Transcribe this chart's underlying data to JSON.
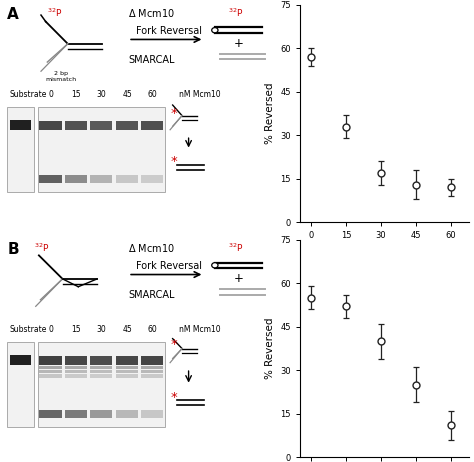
{
  "panel_A": {
    "x": [
      0,
      15,
      30,
      45,
      60
    ],
    "y": [
      57,
      33,
      17,
      13,
      12
    ],
    "yerr": [
      3,
      4,
      4,
      5,
      3
    ],
    "ylabel": "% Reversed",
    "xlabel": "nM Mcm10",
    "ylim": [
      0,
      75
    ],
    "yticks": [
      0,
      15,
      30,
      45,
      60,
      75
    ]
  },
  "panel_B": {
    "x": [
      0,
      15,
      30,
      45,
      60
    ],
    "y": [
      55,
      52,
      40,
      25,
      11
    ],
    "yerr": [
      4,
      4,
      6,
      6,
      5
    ],
    "ylabel": "% Reversed",
    "xlabel": "nM Mcm10",
    "ylim": [
      0,
      75
    ],
    "yticks": [
      0,
      15,
      30,
      45,
      60,
      75
    ]
  },
  "line_color": "#222222",
  "marker_facecolor": "white",
  "marker_edgecolor": "#222222",
  "marker_size": 5,
  "background_color": "#ffffff",
  "font_size": 7.5,
  "red_color": "#cc0000",
  "label_A": "A",
  "label_B": "B"
}
